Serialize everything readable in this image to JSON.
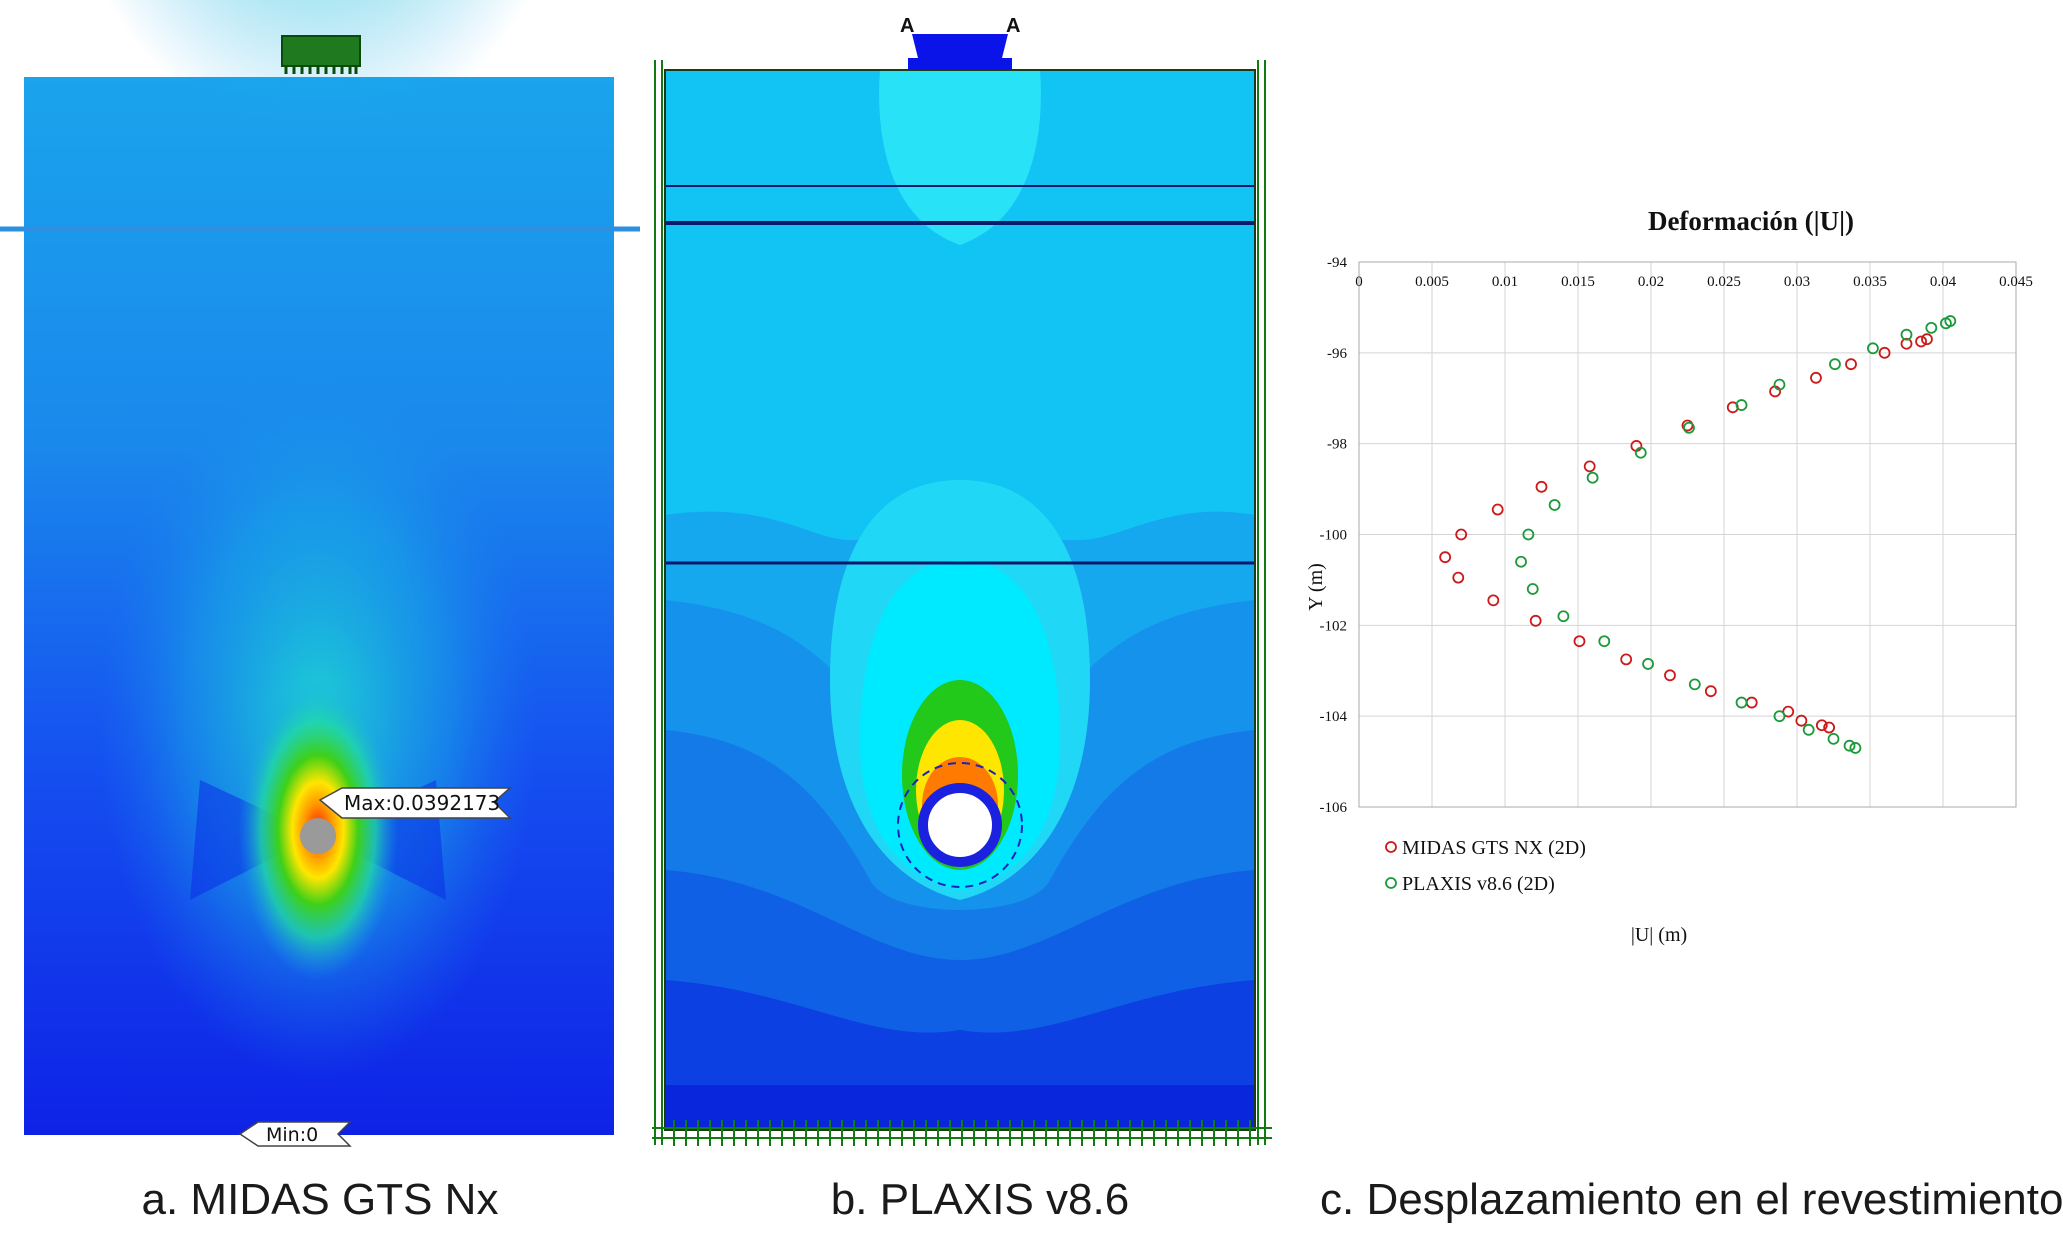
{
  "panels": {
    "a": {
      "caption": "a. MIDAS GTS Nx",
      "max_label": "Max:0.0392173",
      "min_label": "Min:0"
    },
    "b": {
      "caption": "b. PLAXIS v8.6",
      "point_labels": [
        "A",
        "A"
      ]
    },
    "c": {
      "caption": "c. Desplazamiento en el revestimiento"
    }
  },
  "colors": {
    "deep_blue": "#0a1edc",
    "mid_blue": "#1060f0",
    "light_blue": "#17a9ee",
    "cyan": "#00e8ff",
    "green": "#22c81a",
    "yellow": "#ffe600",
    "red": "#ff1a00",
    "midas_series": "#cc1a1a",
    "plaxis_series": "#1a9a3a"
  },
  "chart_data": {
    "type": "scatter",
    "title": "Deformación (|U|)",
    "xlabel": "|U| (m)",
    "ylabel": "Y (m)",
    "xlim": [
      0,
      0.045
    ],
    "ylim": [
      -106,
      -94
    ],
    "x_ticks": [
      "0",
      "0.005",
      "0.01",
      "0.015",
      "0.02",
      "0.025",
      "0.03",
      "0.035",
      "0.04",
      "0.045"
    ],
    "y_ticks": [
      "-94",
      "-96",
      "-98",
      "-100",
      "-102",
      "-104",
      "-106"
    ],
    "x_axis_position": "top",
    "grid": true,
    "legend_position": "bottom-left",
    "series": [
      {
        "name": "MIDAS GTS NX (2D)",
        "color": "#cc1a1a",
        "points": [
          [
            0.0389,
            -95.7
          ],
          [
            0.0375,
            -95.8
          ],
          [
            0.0385,
            -95.75
          ],
          [
            0.036,
            -96.0
          ],
          [
            0.0337,
            -96.25
          ],
          [
            0.0313,
            -96.55
          ],
          [
            0.0285,
            -96.85
          ],
          [
            0.0256,
            -97.2
          ],
          [
            0.0225,
            -97.6
          ],
          [
            0.019,
            -98.05
          ],
          [
            0.0158,
            -98.5
          ],
          [
            0.0125,
            -98.95
          ],
          [
            0.0095,
            -99.45
          ],
          [
            0.007,
            -100.0
          ],
          [
            0.0059,
            -100.5
          ],
          [
            0.0068,
            -100.95
          ],
          [
            0.0092,
            -101.45
          ],
          [
            0.0121,
            -101.9
          ],
          [
            0.0151,
            -102.35
          ],
          [
            0.0183,
            -102.75
          ],
          [
            0.0213,
            -103.1
          ],
          [
            0.0241,
            -103.45
          ],
          [
            0.0269,
            -103.7
          ],
          [
            0.0294,
            -103.9
          ],
          [
            0.0303,
            -104.1
          ],
          [
            0.0317,
            -104.2
          ],
          [
            0.0322,
            -104.25
          ]
        ]
      },
      {
        "name": "PLAXIS v8.6 (2D)",
        "color": "#1a9a3a",
        "points": [
          [
            0.0405,
            -95.3
          ],
          [
            0.0402,
            -95.35
          ],
          [
            0.0392,
            -95.45
          ],
          [
            0.0375,
            -95.6
          ],
          [
            0.0352,
            -95.9
          ],
          [
            0.0326,
            -96.25
          ],
          [
            0.0288,
            -96.7
          ],
          [
            0.0262,
            -97.15
          ],
          [
            0.0226,
            -97.65
          ],
          [
            0.0193,
            -98.2
          ],
          [
            0.016,
            -98.75
          ],
          [
            0.0134,
            -99.35
          ],
          [
            0.0116,
            -100.0
          ],
          [
            0.0111,
            -100.6
          ],
          [
            0.0119,
            -101.2
          ],
          [
            0.014,
            -101.8
          ],
          [
            0.0168,
            -102.35
          ],
          [
            0.0198,
            -102.85
          ],
          [
            0.023,
            -103.3
          ],
          [
            0.0262,
            -103.7
          ],
          [
            0.0288,
            -104.0
          ],
          [
            0.0308,
            -104.3
          ],
          [
            0.0325,
            -104.5
          ],
          [
            0.0336,
            -104.65
          ],
          [
            0.034,
            -104.7
          ]
        ]
      }
    ]
  }
}
